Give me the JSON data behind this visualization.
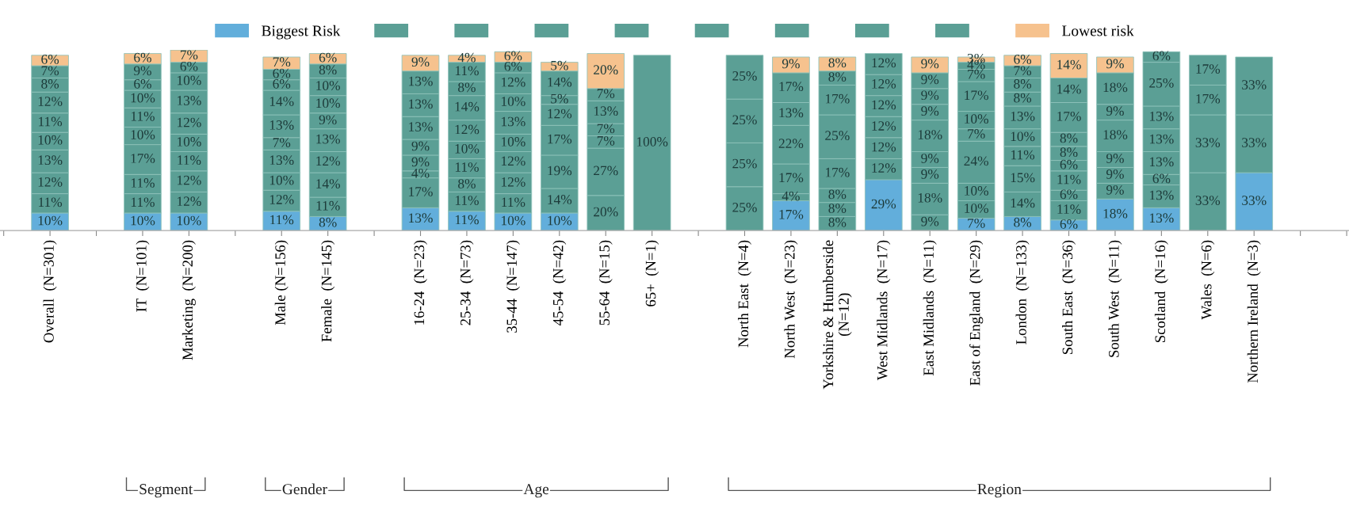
{
  "chart_data": {
    "type": "bar",
    "stacked": true,
    "legend": "top",
    "grid": false,
    "categories": [
      null,
      "Overall  (N=301)",
      null,
      "IT  (N=101)",
      "Marketing  (N=200)",
      null,
      "Male (N=156)",
      "Female  (N=145)",
      null,
      "16-24  (N=23)",
      "25-34  (N=73)",
      "35-44  (N=147)",
      "45-54  (N=42)",
      "55-64  (N=15)",
      "65+  (N=1)",
      null,
      "North East  (N=4)",
      "North West  (N=23)",
      "Yorkshire & Humberside\n(N=12)",
      "West Midlands  (N=17)",
      "East Midlands  (N=11)",
      "East of England  (N=29)",
      "London  (N=133)",
      "South East  (N=36)",
      "South West  (N=11)",
      "Scotland  (N=16)",
      "Wales  (N=6)",
      "Northern Ireland  (N=3)",
      null,
      null
    ],
    "series": [
      {
        "name": "Biggest Risk",
        "color": "#62aedb",
        "values": [
          null,
          10,
          null,
          10,
          10,
          null,
          11,
          8,
          null,
          13,
          11,
          10,
          10,
          null,
          null,
          null,
          null,
          17,
          null,
          29,
          null,
          7,
          8,
          6,
          18,
          13,
          null,
          33,
          null,
          null
        ],
        "value_labels": [
          null,
          "10%",
          null,
          "10%",
          "10%",
          null,
          "11%",
          "8%",
          null,
          "13%",
          "11%",
          "10%",
          "10%",
          null,
          null,
          null,
          null,
          "17%",
          null,
          "29%",
          null,
          "7%",
          "8%",
          "6%",
          "18%",
          "13%",
          null,
          "33%",
          null,
          null
        ]
      },
      {
        "color": "#5b9f95",
        "values": [
          null,
          11,
          null,
          11,
          12,
          null,
          12,
          11,
          null,
          17,
          11,
          11,
          14,
          20,
          100,
          null,
          25,
          4,
          8,
          12,
          9,
          10,
          14,
          11,
          9,
          13,
          33,
          33,
          null,
          null
        ],
        "value_labels": [
          null,
          "11%",
          null,
          "11%",
          "12%",
          null,
          "12%",
          "11%",
          null,
          "17%",
          "11%",
          "11%",
          "14%",
          "20%",
          "100%",
          null,
          "25%",
          "4%",
          "8%",
          "12%",
          "9%",
          "10%",
          "14%",
          "11%",
          "9%",
          "13%",
          "33%",
          "33%",
          null,
          null
        ]
      },
      {
        "color": "#5b9f95",
        "values": [
          null,
          12,
          null,
          11,
          12,
          null,
          10,
          14,
          null,
          4,
          8,
          12,
          19,
          27,
          null,
          null,
          25,
          17,
          8,
          12,
          18,
          10,
          15,
          6,
          9,
          6,
          33,
          33,
          null,
          null
        ],
        "value_labels": [
          null,
          "12%",
          null,
          "11%",
          "12%",
          null,
          "10%",
          "14%",
          null,
          "4%",
          "8%",
          "12%",
          "19%",
          "27%",
          null,
          null,
          "25%",
          "17%",
          "8%",
          "12%",
          "18%",
          "10%",
          "15%",
          "6%",
          "9%",
          "6%",
          "33%",
          "33%",
          null,
          null
        ]
      },
      {
        "color": "#5b9f95",
        "values": [
          null,
          13,
          null,
          17,
          11,
          null,
          13,
          12,
          null,
          9,
          11,
          12,
          17,
          7,
          null,
          null,
          25,
          22,
          8,
          12,
          9,
          24,
          11,
          11,
          9,
          13,
          17,
          null,
          null,
          null
        ],
        "value_labels": [
          null,
          "13%",
          null,
          "17%",
          "11%",
          null,
          "13%",
          "12%",
          null,
          "9%",
          "11%",
          "12%",
          "17%",
          "7%",
          null,
          null,
          "25%",
          "22%",
          "8%",
          "12%",
          "9%",
          "24%",
          "11%",
          "11%",
          "9%",
          "13%",
          "17%",
          null,
          null,
          null
        ]
      },
      {
        "color": "#5b9f95",
        "values": [
          null,
          10,
          null,
          10,
          10,
          null,
          7,
          13,
          null,
          9,
          10,
          10,
          12,
          7,
          null,
          null,
          25,
          13,
          17,
          12,
          9,
          7,
          10,
          6,
          18,
          13,
          17,
          null,
          null,
          null
        ],
        "value_labels": [
          null,
          "10%",
          null,
          "10%",
          "10%",
          null,
          "7%",
          "13%",
          null,
          "9%",
          "10%",
          "10%",
          "12%",
          "7%",
          null,
          null,
          "25%",
          "13%",
          "17%",
          "12%",
          "9%",
          "7%",
          "10%",
          "6%",
          "18%",
          "13%",
          "17%",
          null,
          null,
          null
        ]
      },
      {
        "color": "#5b9f95",
        "values": [
          null,
          11,
          null,
          11,
          12,
          null,
          13,
          9,
          null,
          13,
          12,
          13,
          5,
          13,
          null,
          null,
          null,
          17,
          25,
          12,
          18,
          10,
          13,
          8,
          9,
          13,
          null,
          null,
          null,
          null
        ],
        "value_labels": [
          null,
          "11%",
          null,
          "11%",
          "12%",
          null,
          "13%",
          "9%",
          null,
          "13%",
          "12%",
          "13%",
          "5%",
          "13%",
          null,
          null,
          null,
          "17%",
          "25%",
          "12%",
          "18%",
          "10%",
          "13%",
          "8%",
          "9%",
          "13%",
          null,
          null,
          null,
          null
        ]
      },
      {
        "color": "#5b9f95",
        "values": [
          null,
          12,
          null,
          10,
          13,
          null,
          14,
          10,
          null,
          13,
          14,
          10,
          14,
          7,
          null,
          null,
          null,
          null,
          17,
          12,
          9,
          17,
          8,
          8,
          18,
          25,
          null,
          null,
          null,
          null
        ],
        "value_labels": [
          null,
          "12%",
          null,
          "10%",
          "13%",
          null,
          "14%",
          "10%",
          null,
          "13%",
          "14%",
          "10%",
          "14%",
          "7%",
          null,
          null,
          null,
          null,
          "17%",
          "12%",
          "9%",
          "17%",
          "8%",
          "8%",
          "18%",
          "25%",
          null,
          null,
          null,
          null
        ]
      },
      {
        "color": "#5b9f95",
        "values": [
          null,
          8,
          null,
          6,
          10,
          null,
          6,
          10,
          null,
          13,
          8,
          12,
          null,
          null,
          null,
          null,
          null,
          null,
          8,
          null,
          9,
          7,
          8,
          17,
          null,
          6,
          null,
          null,
          null,
          null
        ],
        "value_labels": [
          null,
          "8%",
          null,
          "6%",
          "10%",
          null,
          "6%",
          "10%",
          null,
          "13%",
          "8%",
          "12%",
          null,
          null,
          null,
          null,
          null,
          null,
          "8%",
          null,
          "9%",
          "7%",
          "8%",
          "17%",
          null,
          "6%",
          null,
          null,
          null,
          null
        ]
      },
      {
        "color": "#5b9f95",
        "values": [
          null,
          7,
          null,
          9,
          6,
          null,
          6,
          8,
          null,
          null,
          11,
          6,
          null,
          null,
          null,
          null,
          null,
          null,
          null,
          null,
          9,
          4,
          7,
          14,
          null,
          null,
          null,
          null,
          null,
          null
        ],
        "value_labels": [
          null,
          "7%",
          null,
          "9%",
          "6%",
          null,
          "6%",
          "8%",
          null,
          null,
          "11%",
          "6%",
          null,
          null,
          null,
          null,
          null,
          null,
          null,
          null,
          "9%",
          "4%",
          "7%",
          "14%",
          null,
          null,
          null,
          null,
          null,
          null
        ]
      },
      {
        "name": "Lowest risk",
        "color": "#f6c28e",
        "values": [
          null,
          6,
          null,
          6,
          7,
          null,
          7,
          6,
          null,
          9,
          4,
          6,
          5,
          20,
          null,
          null,
          null,
          9,
          8,
          null,
          9,
          3,
          6,
          14,
          9,
          null,
          null,
          null,
          null,
          null
        ],
        "value_labels": [
          null,
          "6%",
          null,
          "6%",
          "7%",
          null,
          "7%",
          "6%",
          null,
          "9%",
          "4%",
          "6%",
          "5%",
          "20%",
          null,
          null,
          null,
          "9%",
          "8%",
          null,
          "9%",
          "3%",
          "6%",
          "14%",
          "9%",
          null,
          null,
          null,
          null,
          null
        ]
      }
    ],
    "annotations": [
      "Segment",
      "Gender",
      "Age",
      "Region"
    ]
  }
}
